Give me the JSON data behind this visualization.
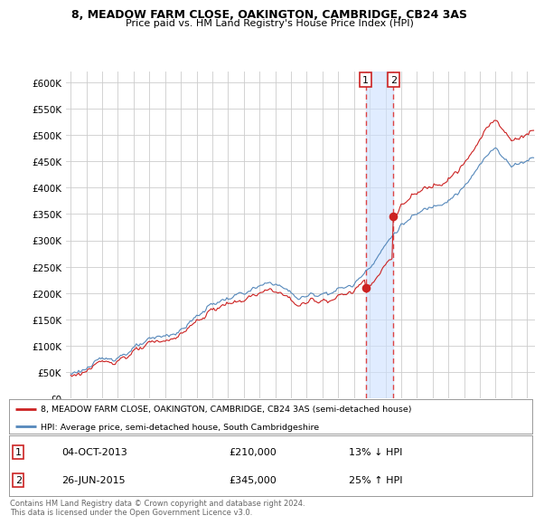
{
  "title": "8, MEADOW FARM CLOSE, OAKINGTON, CAMBRIDGE, CB24 3AS",
  "subtitle": "Price paid vs. HM Land Registry's House Price Index (HPI)",
  "legend_line1": "8, MEADOW FARM CLOSE, OAKINGTON, CAMBRIDGE, CB24 3AS (semi-detached house)",
  "legend_line2": "HPI: Average price, semi-detached house, South Cambridgeshire",
  "sale1_date": "04-OCT-2013",
  "sale1_price": 210000,
  "sale1_pct": "13% ↓ HPI",
  "sale2_date": "26-JUN-2015",
  "sale2_price": 345000,
  "sale2_pct": "25% ↑ HPI",
  "footer": "Contains HM Land Registry data © Crown copyright and database right 2024.\nThis data is licensed under the Open Government Licence v3.0.",
  "hpi_color": "#5588bb",
  "price_color": "#cc2222",
  "vline_color": "#dd4444",
  "shade_color": "#cce0ff",
  "background_color": "#ffffff",
  "grid_color": "#cccccc",
  "ylim": [
    0,
    620000
  ],
  "yticks": [
    0,
    50000,
    100000,
    150000,
    200000,
    250000,
    300000,
    350000,
    400000,
    450000,
    500000,
    550000,
    600000
  ],
  "sale1_x": 2013.75,
  "sale2_x": 2015.5,
  "xmin": 1995.0,
  "xmax": 2024.5
}
